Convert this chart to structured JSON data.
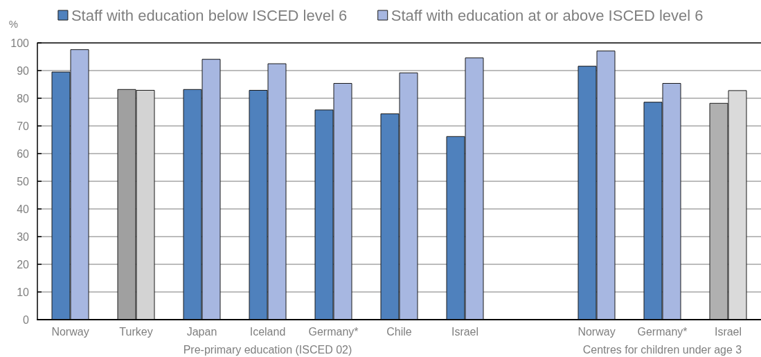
{
  "chart_data": {
    "type": "bar",
    "ylabel": "%",
    "categories": [
      "Norway",
      "Turkey",
      "Japan",
      "Iceland",
      "Germany*",
      "Chile",
      "Israel",
      null,
      "Norway",
      "Germany*",
      "Israel"
    ],
    "series": [
      {
        "name": "Staff with education below ISCED level 6",
        "color": "#4f81bd",
        "colors": [
          "#4f81bd",
          "#a0a0a0",
          "#4f81bd",
          "#4f81bd",
          "#4f81bd",
          "#4f81bd",
          "#4f81bd",
          "#4f81bd",
          "#4f81bd",
          "#4f81bd",
          "#b0b0b0"
        ],
        "values": [
          89.6,
          83.3,
          83.3,
          83.0,
          75.9,
          74.5,
          66.3,
          null,
          91.7,
          78.7,
          78.3
        ]
      },
      {
        "name": "Staff with education at or above ISCED level 6",
        "color": "#a7b7e1",
        "colors": [
          "#a7b7e1",
          "#d3d3d3",
          "#a7b7e1",
          "#a7b7e1",
          "#a7b7e1",
          "#a7b7e1",
          "#a7b7e1",
          "#a7b7e1",
          "#a7b7e1",
          "#a7b7e1",
          "#dadada"
        ],
        "values": [
          97.7,
          83.0,
          94.2,
          92.6,
          85.5,
          89.3,
          94.7,
          null,
          97.2,
          85.5,
          82.9
        ]
      }
    ],
    "ylim": [
      0,
      100
    ],
    "yticks": [
      0,
      10,
      20,
      30,
      40,
      50,
      60,
      70,
      80,
      90,
      100
    ],
    "grid": "y",
    "legend": "top",
    "annotations": [
      "Pre-primary education (ISCED 02)",
      "Centres for children under age 3"
    ]
  }
}
